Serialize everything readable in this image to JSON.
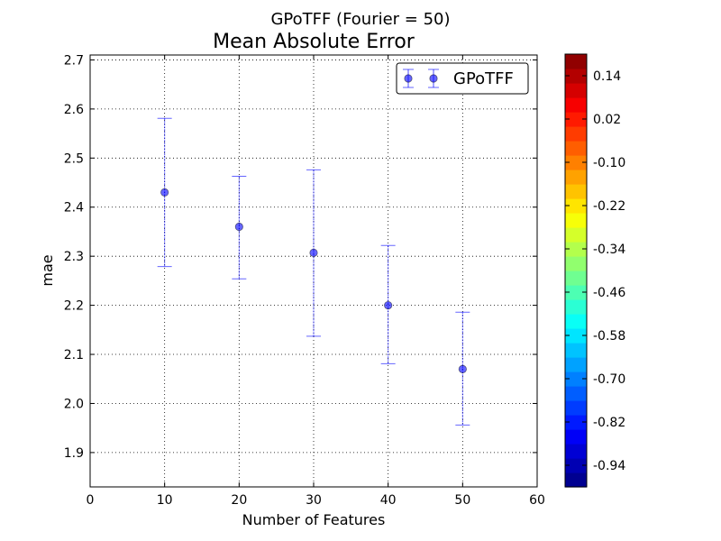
{
  "figure": {
    "suptitle": "GPoTFF (Fourier = 50)"
  },
  "chart_data": {
    "type": "scatter",
    "title": "Mean Absolute Error",
    "xlabel": "Number of Features",
    "ylabel": "mae",
    "xlim": [
      0,
      60
    ],
    "ylim": [
      1.83,
      2.71
    ],
    "xticks": [
      "0",
      "10",
      "20",
      "30",
      "40",
      "50",
      "60"
    ],
    "yticks": [
      "1.9",
      "2.0",
      "2.1",
      "2.2",
      "2.3",
      "2.4",
      "2.5",
      "2.6",
      "2.7"
    ],
    "grid": true,
    "legend_position": "top-right",
    "series": [
      {
        "name": "GPoTFF",
        "color": "#0000ff",
        "x": [
          10,
          20,
          30,
          40,
          50
        ],
        "y": [
          2.43,
          2.36,
          2.307,
          2.2,
          2.07
        ],
        "yerr_low": [
          2.279,
          2.254,
          2.137,
          2.081,
          1.956
        ],
        "yerr_high": [
          2.581,
          2.463,
          2.476,
          2.322,
          2.186
        ]
      }
    ],
    "colorbar": {
      "colormap": "jet",
      "range": [
        -1.0,
        0.2
      ],
      "tick_values": [
        0.14,
        0.02,
        -0.1,
        -0.22,
        -0.34,
        -0.46,
        -0.58,
        -0.7,
        -0.82,
        -0.94
      ],
      "tick_labels": [
        "0.14",
        "0.02",
        "-0.10",
        "-0.22",
        "-0.34",
        "-0.46",
        "-0.58",
        "-0.70",
        "-0.82",
        "-0.94"
      ]
    }
  }
}
